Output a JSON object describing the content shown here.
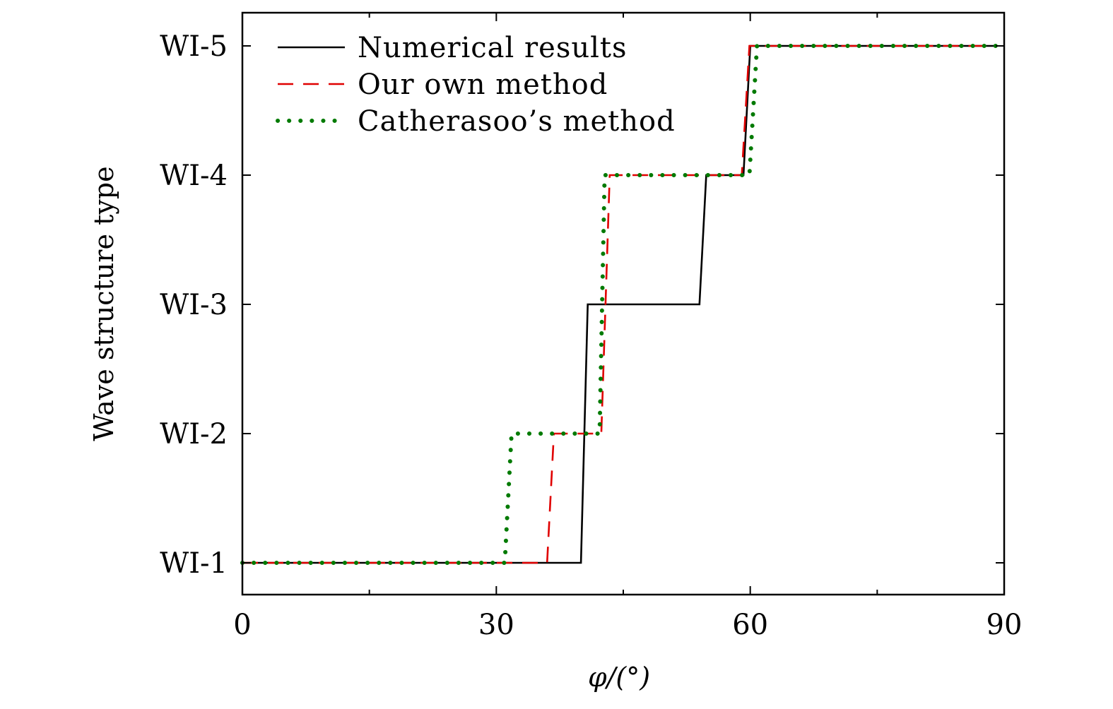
{
  "chart_data": {
    "type": "line",
    "xlabel": "φ/(°)",
    "ylabel": "Wave structure type",
    "xlim": [
      0,
      90
    ],
    "x_ticks": [
      "0",
      "30",
      "60",
      "90"
    ],
    "y_categories": [
      "WI-1",
      "WI-2",
      "WI-3",
      "WI-4",
      "WI-5"
    ],
    "grid": false,
    "legend_position": "top-left",
    "series": [
      {
        "name": "Numerical results",
        "color": "#000000",
        "style": "solid",
        "points": [
          [
            0,
            1
          ],
          [
            40,
            1
          ],
          [
            40.8,
            3
          ],
          [
            54,
            3
          ],
          [
            54.8,
            4
          ],
          [
            59.2,
            4
          ],
          [
            60,
            5
          ],
          [
            89,
            5
          ]
        ]
      },
      {
        "name": "Our own method",
        "color": "#e00000",
        "style": "dashed",
        "points": [
          [
            0,
            1
          ],
          [
            36,
            1
          ],
          [
            36.8,
            2
          ],
          [
            42.4,
            2
          ],
          [
            43.4,
            4
          ],
          [
            59,
            4
          ],
          [
            59.9,
            5
          ],
          [
            89,
            5
          ]
        ]
      },
      {
        "name": "Catherasoo’s method",
        "color": "#007a00",
        "style": "dotted",
        "points": [
          [
            0,
            1
          ],
          [
            31,
            1
          ],
          [
            31.8,
            2
          ],
          [
            42.2,
            2
          ],
          [
            42.8,
            4
          ],
          [
            59.9,
            4
          ],
          [
            60.8,
            5
          ],
          [
            89,
            5
          ]
        ]
      }
    ]
  }
}
